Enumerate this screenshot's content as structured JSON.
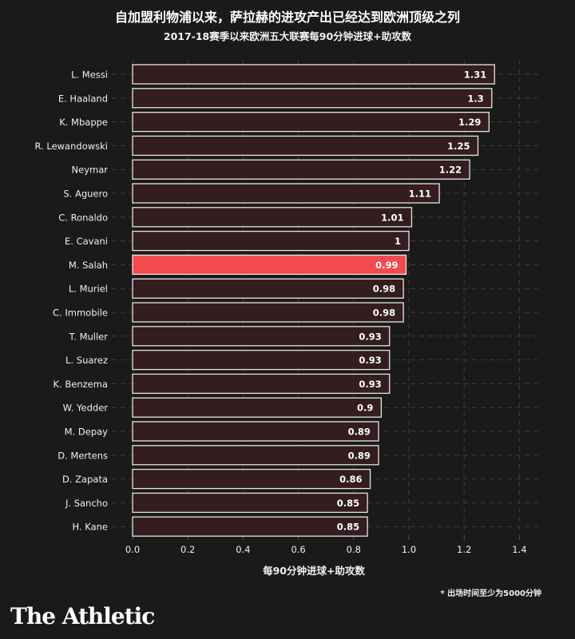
{
  "header": {
    "title": "自加盟利物浦以来，萨拉赫的进攻产出已经达到欧洲顶级之列",
    "subtitle": "2017-18赛季以来欧洲五大联赛每90分钟进球+助攻数"
  },
  "footnote": "* 出场时间至少为5000分钟",
  "logo": "The Athletic",
  "chart_data": {
    "type": "bar",
    "orientation": "horizontal",
    "title": "自加盟利物浦以来，萨拉赫的进攻产出已经达到欧洲顶级之列",
    "subtitle": "2017-18赛季以来欧洲五大联赛每90分钟进球+助攻数",
    "xlabel": "每90分钟进球+助攻数",
    "ylabel": "",
    "xlim": [
      0,
      1.5
    ],
    "xticks": [
      0.0,
      0.2,
      0.4,
      0.6,
      0.8,
      1.0,
      1.2,
      1.4
    ],
    "xtick_labels": [
      "0.0",
      "0.2",
      "0.4",
      "0.6",
      "0.8",
      "1.0",
      "1.2",
      "1.4"
    ],
    "grid": true,
    "categories": [
      "L. Messi",
      "E. Haaland",
      "K. Mbappe",
      "R. Lewandowski",
      "Neymar",
      "S. Aguero",
      "C. Ronaldo",
      "E. Cavani",
      "M. Salah",
      "L. Muriel",
      "C. Immobile",
      "T. Muller",
      "L. Suarez",
      "K. Benzema",
      "W. Yedder",
      "M. Depay",
      "D. Mertens",
      "D. Zapata",
      "J. Sancho",
      "H. Kane"
    ],
    "values": [
      1.31,
      1.3,
      1.29,
      1.25,
      1.22,
      1.11,
      1.01,
      1,
      0.99,
      0.98,
      0.98,
      0.93,
      0.93,
      0.93,
      0.9,
      0.89,
      0.89,
      0.86,
      0.85,
      0.85
    ],
    "value_labels": [
      "1.31",
      "1.3",
      "1.29",
      "1.25",
      "1.22",
      "1.11",
      "1.01",
      "1",
      "0.99",
      "0.98",
      "0.98",
      "0.93",
      "0.93",
      "0.93",
      "0.9",
      "0.89",
      "0.89",
      "0.86",
      "0.85",
      "0.85"
    ],
    "highlight": "M. Salah",
    "colors": {
      "bar": "#351d1f",
      "bar_stroke": "#e8e4e4",
      "highlight": "#f24a4d",
      "grid": "#3d3d3d",
      "background": "#1a1a1a",
      "text": "#f0f0f0"
    }
  }
}
